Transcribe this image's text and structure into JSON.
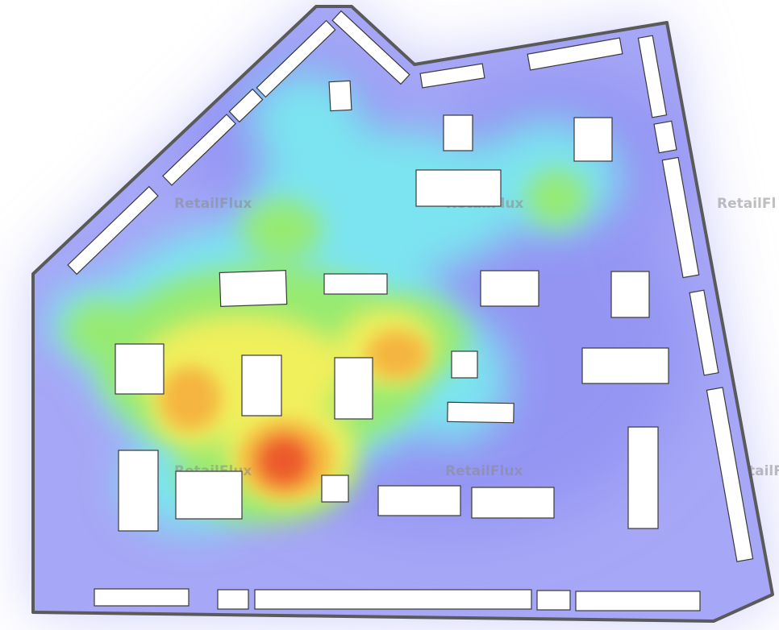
{
  "map": {
    "type": "store-heatmap",
    "watermark_text": "RetailFlux",
    "watermark_visible": [
      "RetailFlux",
      "RetailFlux",
      "RetailFlux",
      "RetailFlux",
      "tailFl",
      "RetailFl"
    ],
    "colors": {
      "outline": "#5a5a5a",
      "fixture_fill": "#ffffff",
      "fixture_stroke": "#3a3a3a",
      "heat_low": "#9b9cf5",
      "heat_mid_low": "#77e6ef",
      "heat_mid": "#8ee86a",
      "heat_mid_high": "#f3ef5a",
      "heat_high": "#f4b23e",
      "heat_peak": "#ee5d2b"
    }
  }
}
